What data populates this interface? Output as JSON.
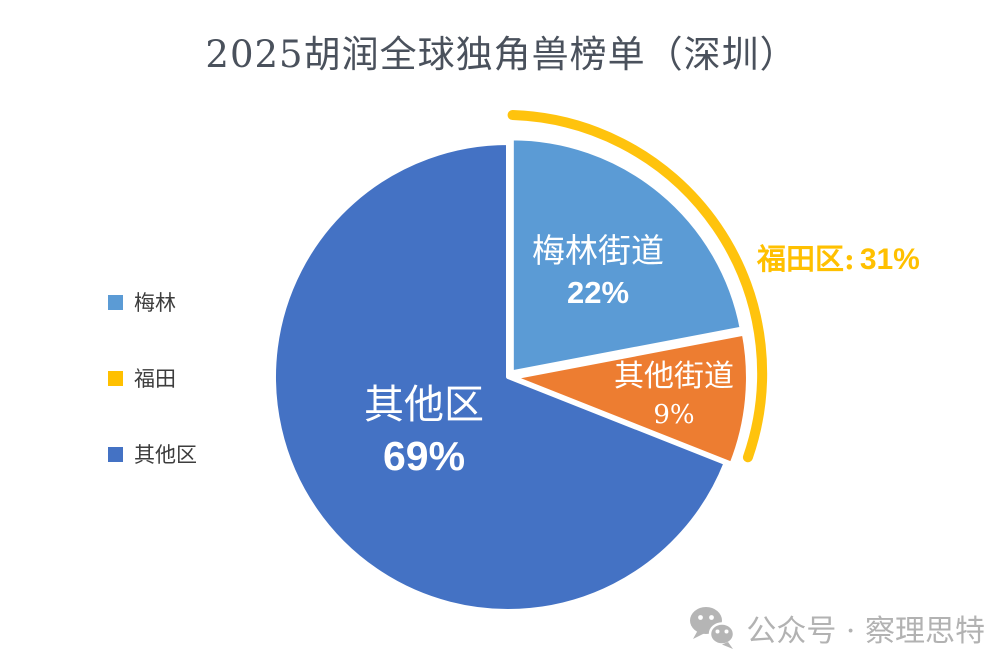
{
  "chart_data": {
    "type": "pie",
    "title": "2025胡润全球独角兽榜单（深圳）",
    "direction": "clockwise",
    "start_angle_deg": 0,
    "slices": [
      {
        "label": "梅林街道",
        "value": 22,
        "display": "22%",
        "color": "#5B9BD5",
        "exploded": true
      },
      {
        "label": "其他街道",
        "value": 9,
        "display": "9%",
        "color": "#ED7D31",
        "exploded": true
      },
      {
        "label": "其他区",
        "value": 69,
        "display": "69%",
        "color": "#4472C4",
        "exploded": false
      }
    ],
    "legend": {
      "position": "left",
      "items": [
        {
          "label": "梅林",
          "color": "#5B9BD5"
        },
        {
          "label": "福田",
          "color": "#FFC000"
        },
        {
          "label": "其他区",
          "color": "#4472C4"
        }
      ]
    },
    "annotation": {
      "label": "福田区:",
      "value": "31%",
      "color": "#FFC000",
      "arc_color": "#FFC000",
      "arc_span_pct": 31
    }
  },
  "watermark": {
    "icon": "wechat-icon",
    "text": "公众号 · 察理思特",
    "color": "#b5b5b5"
  }
}
